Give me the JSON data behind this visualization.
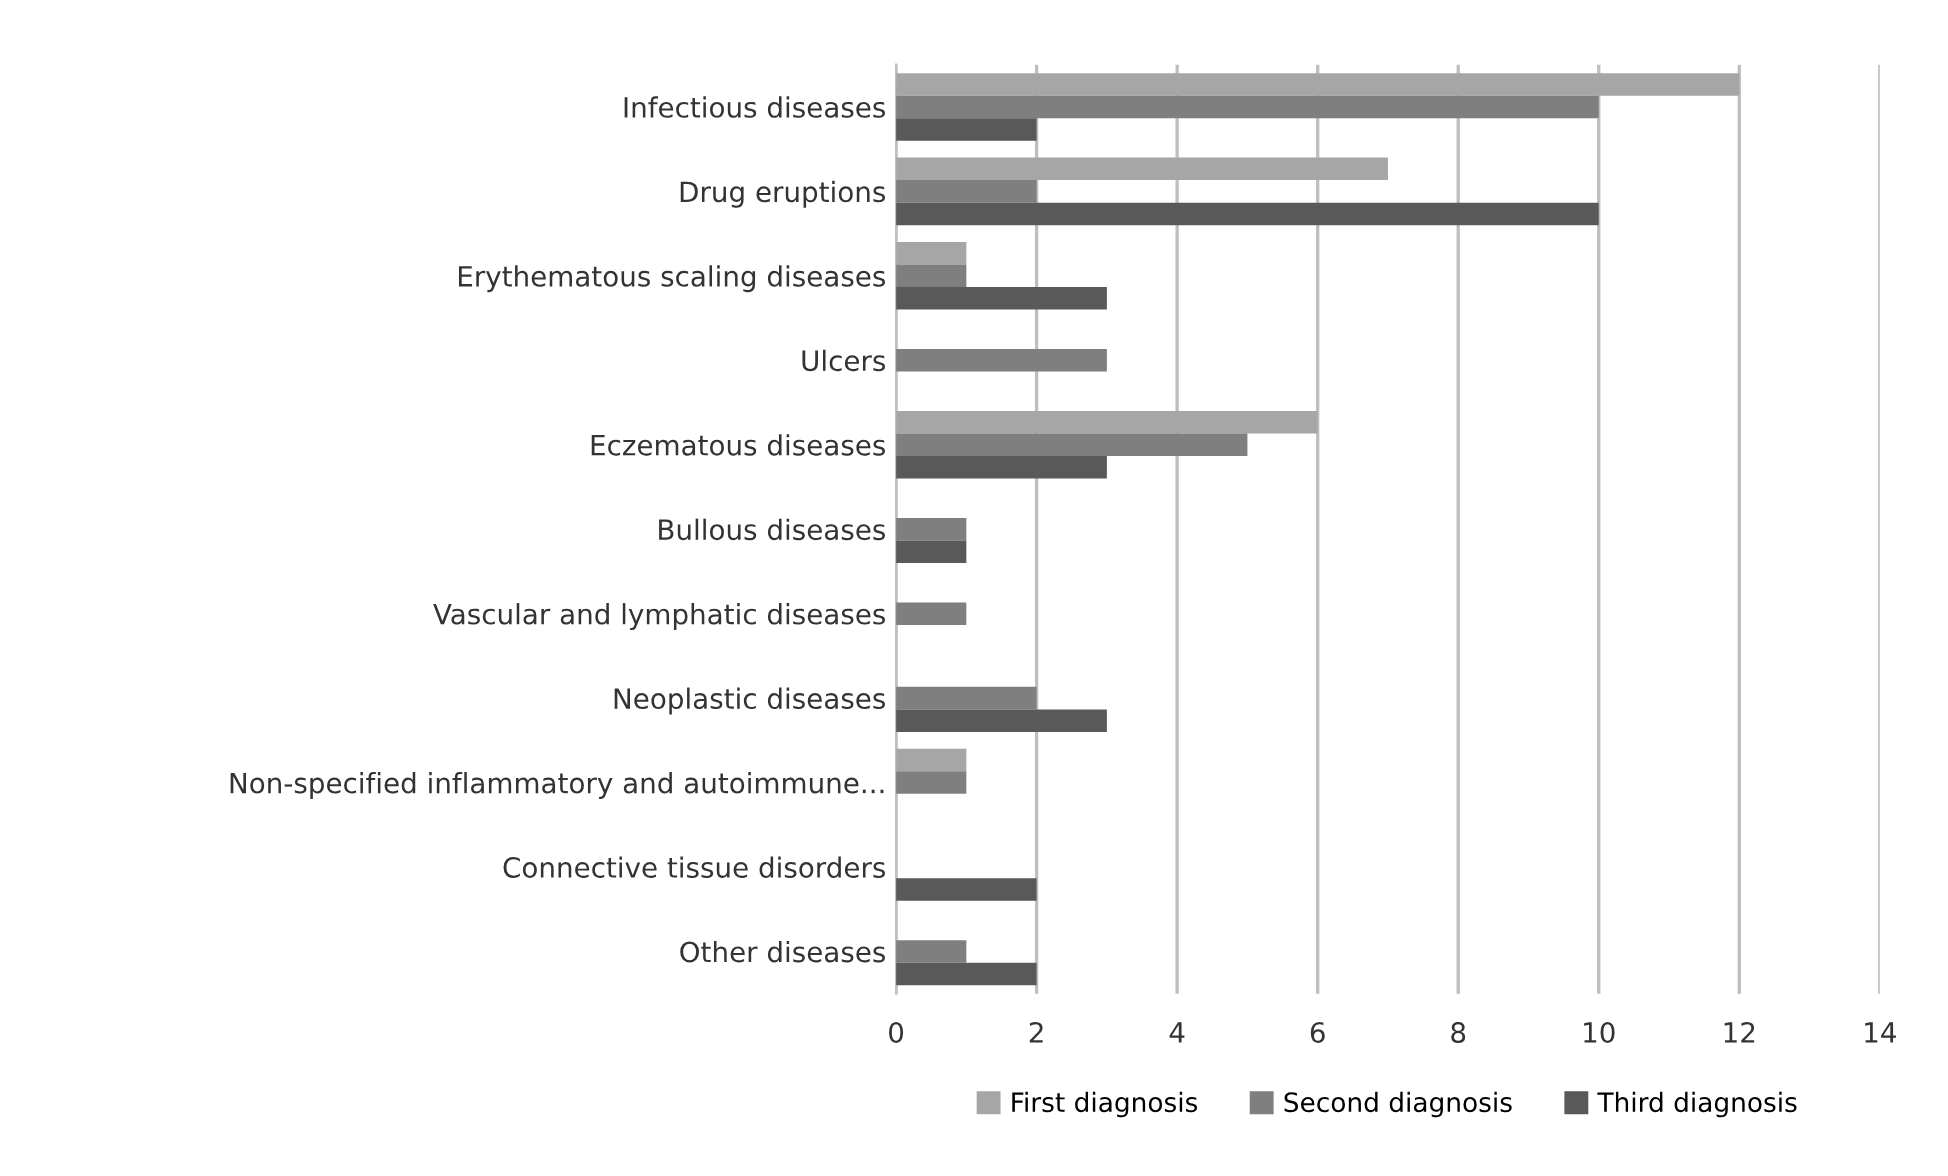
{
  "chart_data": {
    "type": "bar",
    "orientation": "horizontal",
    "categories": [
      "Infectious diseases",
      "Drug eruptions",
      "Erythematous scaling diseases",
      "Ulcers",
      "Eczematous diseases",
      "Bullous diseases",
      "Vascular and lymphatic diseases",
      "Neoplastic diseases",
      "Non-specified inflammatory and autoimmune...",
      "Connective tissue disorders",
      "Other diseases"
    ],
    "series": [
      {
        "name": "First diagnosis",
        "color": "#a6a6a6",
        "values": [
          12,
          7,
          1,
          0,
          6,
          0,
          0,
          0,
          1,
          0,
          0
        ]
      },
      {
        "name": "Second diagnosis",
        "color": "#7f7f7f",
        "values": [
          10,
          2,
          1,
          3,
          5,
          1,
          1,
          2,
          1,
          0,
          1
        ]
      },
      {
        "name": "Third diagnosis",
        "color": "#595959",
        "values": [
          2,
          10,
          3,
          0,
          3,
          1,
          0,
          3,
          0,
          2,
          2
        ]
      }
    ],
    "xlim": [
      0,
      14
    ],
    "xticks": [
      0,
      2,
      4,
      6,
      8,
      10,
      12,
      14
    ],
    "grid": "x",
    "legend": "bottom"
  }
}
